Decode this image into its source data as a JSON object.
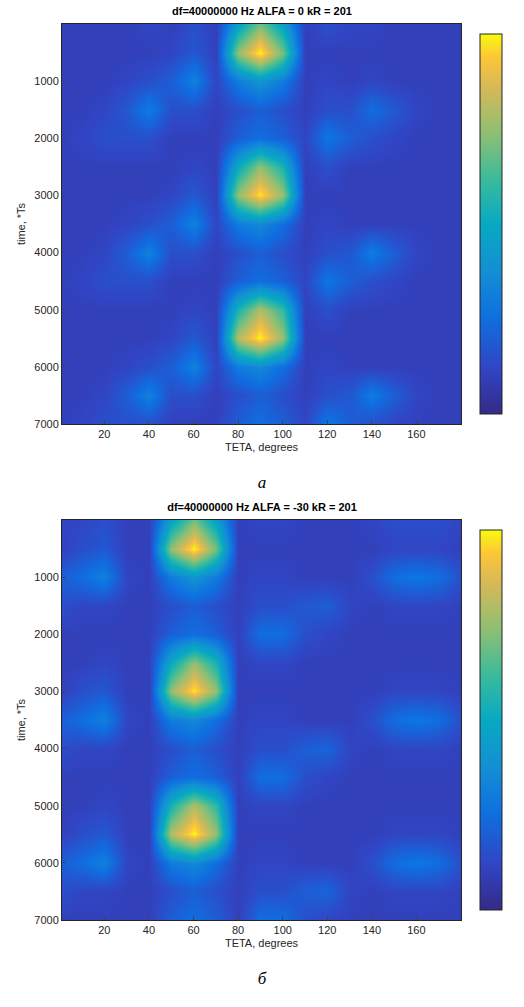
{
  "chart_data": [
    {
      "type": "heatmap",
      "title": "df=40000000 Hz ALFA = 0 kR = 201",
      "panel_label": "а",
      "x_label": "TETA, degrees",
      "y_label": "time, *Ts",
      "xlim": [
        1,
        180
      ],
      "xticks": [
        20,
        40,
        60,
        80,
        100,
        120,
        140,
        160
      ],
      "ylim": [
        7000,
        0
      ],
      "yticks": [
        1000,
        2000,
        3000,
        4000,
        5000,
        6000,
        7000
      ],
      "colorbar_range": [
        0,
        1
      ],
      "x": [
        0,
        10,
        20,
        30,
        40,
        50,
        60,
        70,
        80,
        90,
        100,
        110,
        120,
        130,
        140,
        150,
        160,
        170,
        180
      ],
      "y": [
        0,
        500,
        1000,
        1500,
        2000,
        2500,
        3000,
        3500,
        4000,
        4500,
        5000,
        5500,
        6000,
        6500,
        7000
      ],
      "z": [
        [
          0.1,
          0.1,
          0.1,
          0.1,
          0.12,
          0.1,
          0.15,
          0.1,
          0.45,
          0.7,
          0.45,
          0.1,
          0.15,
          0.12,
          0.12,
          0.1,
          0.1,
          0.1,
          0.1
        ],
        [
          0.1,
          0.1,
          0.1,
          0.1,
          0.1,
          0.12,
          0.18,
          0.1,
          0.75,
          1.0,
          0.7,
          0.1,
          0.1,
          0.1,
          0.1,
          0.1,
          0.1,
          0.1,
          0.1
        ],
        [
          0.1,
          0.1,
          0.1,
          0.12,
          0.15,
          0.2,
          0.32,
          0.12,
          0.3,
          0.4,
          0.3,
          0.1,
          0.12,
          0.1,
          0.12,
          0.1,
          0.1,
          0.1,
          0.1
        ],
        [
          0.1,
          0.1,
          0.12,
          0.18,
          0.3,
          0.15,
          0.15,
          0.1,
          0.15,
          0.2,
          0.15,
          0.1,
          0.15,
          0.15,
          0.25,
          0.18,
          0.12,
          0.1,
          0.1
        ],
        [
          0.1,
          0.12,
          0.15,
          0.15,
          0.15,
          0.1,
          0.1,
          0.1,
          0.2,
          0.25,
          0.2,
          0.12,
          0.28,
          0.2,
          0.15,
          0.12,
          0.1,
          0.1,
          0.1
        ],
        [
          0.1,
          0.1,
          0.1,
          0.1,
          0.1,
          0.1,
          0.12,
          0.1,
          0.5,
          0.75,
          0.55,
          0.1,
          0.15,
          0.1,
          0.1,
          0.1,
          0.1,
          0.1,
          0.1
        ],
        [
          0.1,
          0.1,
          0.1,
          0.1,
          0.1,
          0.12,
          0.18,
          0.1,
          0.75,
          0.98,
          0.75,
          0.1,
          0.1,
          0.1,
          0.1,
          0.1,
          0.1,
          0.1,
          0.1
        ],
        [
          0.1,
          0.1,
          0.1,
          0.12,
          0.15,
          0.2,
          0.32,
          0.12,
          0.3,
          0.35,
          0.25,
          0.1,
          0.12,
          0.1,
          0.1,
          0.1,
          0.1,
          0.1,
          0.1
        ],
        [
          0.1,
          0.1,
          0.12,
          0.2,
          0.32,
          0.15,
          0.15,
          0.1,
          0.15,
          0.2,
          0.15,
          0.1,
          0.15,
          0.18,
          0.3,
          0.2,
          0.12,
          0.1,
          0.1
        ],
        [
          0.1,
          0.12,
          0.15,
          0.15,
          0.15,
          0.1,
          0.1,
          0.1,
          0.2,
          0.25,
          0.2,
          0.12,
          0.28,
          0.2,
          0.15,
          0.12,
          0.1,
          0.1,
          0.1
        ],
        [
          0.1,
          0.1,
          0.1,
          0.1,
          0.1,
          0.1,
          0.12,
          0.1,
          0.55,
          0.8,
          0.6,
          0.1,
          0.15,
          0.1,
          0.1,
          0.1,
          0.1,
          0.1,
          0.1
        ],
        [
          0.1,
          0.1,
          0.1,
          0.1,
          0.1,
          0.12,
          0.18,
          0.1,
          0.8,
          1.0,
          0.75,
          0.1,
          0.1,
          0.1,
          0.1,
          0.1,
          0.1,
          0.1,
          0.1
        ],
        [
          0.1,
          0.1,
          0.1,
          0.12,
          0.15,
          0.2,
          0.32,
          0.12,
          0.3,
          0.35,
          0.25,
          0.1,
          0.12,
          0.1,
          0.1,
          0.1,
          0.1,
          0.1,
          0.1
        ],
        [
          0.1,
          0.1,
          0.12,
          0.2,
          0.32,
          0.15,
          0.15,
          0.1,
          0.15,
          0.2,
          0.15,
          0.1,
          0.15,
          0.18,
          0.3,
          0.2,
          0.12,
          0.1,
          0.1
        ],
        [
          0.1,
          0.12,
          0.15,
          0.15,
          0.15,
          0.1,
          0.1,
          0.1,
          0.2,
          0.25,
          0.2,
          0.12,
          0.28,
          0.2,
          0.15,
          0.12,
          0.1,
          0.1,
          0.1
        ]
      ]
    },
    {
      "type": "heatmap",
      "title": "df=40000000 Hz ALFA = -30 kR = 201",
      "panel_label": "б",
      "x_label": "TETA, degrees",
      "y_label": "time, *Ts",
      "xlim": [
        1,
        180
      ],
      "xticks": [
        20,
        40,
        60,
        80,
        100,
        120,
        140,
        160
      ],
      "ylim": [
        7000,
        0
      ],
      "yticks": [
        1000,
        2000,
        3000,
        4000,
        5000,
        6000,
        7000
      ],
      "colorbar_range": [
        0,
        1
      ],
      "x": [
        0,
        10,
        20,
        30,
        40,
        50,
        60,
        70,
        80,
        90,
        100,
        110,
        120,
        130,
        140,
        150,
        160,
        170,
        180
      ],
      "y": [
        0,
        500,
        1000,
        1500,
        2000,
        2500,
        3000,
        3500,
        4000,
        4500,
        5000,
        5500,
        6000,
        6500,
        7000
      ],
      "z": [
        [
          0.12,
          0.12,
          0.15,
          0.1,
          0.1,
          0.45,
          0.7,
          0.45,
          0.1,
          0.12,
          0.12,
          0.1,
          0.1,
          0.1,
          0.12,
          0.15,
          0.15,
          0.15,
          0.12
        ],
        [
          0.1,
          0.15,
          0.18,
          0.1,
          0.1,
          0.75,
          1.0,
          0.7,
          0.1,
          0.1,
          0.1,
          0.1,
          0.1,
          0.1,
          0.1,
          0.12,
          0.12,
          0.12,
          0.1
        ],
        [
          0.2,
          0.25,
          0.32,
          0.12,
          0.1,
          0.3,
          0.4,
          0.3,
          0.1,
          0.12,
          0.12,
          0.1,
          0.1,
          0.1,
          0.15,
          0.25,
          0.28,
          0.25,
          0.15
        ],
        [
          0.15,
          0.12,
          0.12,
          0.1,
          0.1,
          0.15,
          0.2,
          0.15,
          0.1,
          0.15,
          0.15,
          0.18,
          0.2,
          0.12,
          0.1,
          0.12,
          0.12,
          0.12,
          0.1
        ],
        [
          0.1,
          0.1,
          0.1,
          0.1,
          0.1,
          0.2,
          0.25,
          0.2,
          0.1,
          0.25,
          0.25,
          0.15,
          0.12,
          0.1,
          0.1,
          0.1,
          0.1,
          0.1,
          0.1
        ],
        [
          0.1,
          0.1,
          0.12,
          0.1,
          0.1,
          0.5,
          0.75,
          0.55,
          0.1,
          0.12,
          0.12,
          0.1,
          0.1,
          0.1,
          0.1,
          0.1,
          0.1,
          0.1,
          0.1
        ],
        [
          0.1,
          0.15,
          0.18,
          0.1,
          0.1,
          0.75,
          0.98,
          0.75,
          0.1,
          0.1,
          0.1,
          0.1,
          0.1,
          0.1,
          0.1,
          0.12,
          0.12,
          0.12,
          0.1
        ],
        [
          0.2,
          0.25,
          0.32,
          0.12,
          0.1,
          0.3,
          0.35,
          0.25,
          0.1,
          0.12,
          0.12,
          0.1,
          0.1,
          0.1,
          0.15,
          0.25,
          0.28,
          0.25,
          0.15
        ],
        [
          0.15,
          0.12,
          0.12,
          0.1,
          0.1,
          0.15,
          0.2,
          0.15,
          0.1,
          0.15,
          0.15,
          0.2,
          0.22,
          0.12,
          0.1,
          0.12,
          0.12,
          0.12,
          0.1
        ],
        [
          0.1,
          0.1,
          0.1,
          0.1,
          0.1,
          0.2,
          0.25,
          0.2,
          0.1,
          0.25,
          0.25,
          0.15,
          0.12,
          0.1,
          0.1,
          0.1,
          0.1,
          0.1,
          0.1
        ],
        [
          0.1,
          0.1,
          0.12,
          0.1,
          0.1,
          0.55,
          0.8,
          0.6,
          0.1,
          0.12,
          0.12,
          0.1,
          0.1,
          0.1,
          0.1,
          0.1,
          0.1,
          0.1,
          0.1
        ],
        [
          0.1,
          0.15,
          0.18,
          0.1,
          0.1,
          0.8,
          1.0,
          0.75,
          0.1,
          0.1,
          0.1,
          0.1,
          0.1,
          0.1,
          0.1,
          0.12,
          0.12,
          0.12,
          0.1
        ],
        [
          0.2,
          0.25,
          0.32,
          0.12,
          0.1,
          0.3,
          0.35,
          0.25,
          0.1,
          0.12,
          0.12,
          0.1,
          0.1,
          0.1,
          0.15,
          0.25,
          0.28,
          0.25,
          0.15
        ],
        [
          0.15,
          0.12,
          0.12,
          0.1,
          0.1,
          0.15,
          0.2,
          0.15,
          0.1,
          0.15,
          0.15,
          0.2,
          0.22,
          0.12,
          0.1,
          0.12,
          0.12,
          0.12,
          0.1
        ],
        [
          0.1,
          0.1,
          0.1,
          0.1,
          0.1,
          0.2,
          0.25,
          0.2,
          0.1,
          0.25,
          0.25,
          0.15,
          0.12,
          0.1,
          0.1,
          0.1,
          0.1,
          0.1,
          0.1
        ]
      ]
    }
  ]
}
